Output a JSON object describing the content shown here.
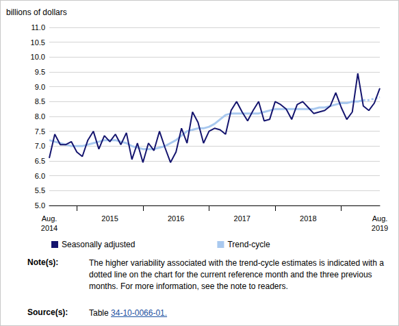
{
  "chart_data": {
    "type": "line",
    "y_label": "billions of dollars",
    "categories": [
      "Aug.\n2014",
      null,
      null,
      null,
      null,
      null,
      null,
      null,
      null,
      null,
      null,
      "2015",
      null,
      null,
      null,
      null,
      null,
      null,
      null,
      null,
      null,
      null,
      null,
      "2016",
      null,
      null,
      null,
      null,
      null,
      null,
      null,
      null,
      null,
      null,
      null,
      "2017",
      null,
      null,
      null,
      null,
      null,
      null,
      null,
      null,
      null,
      null,
      null,
      "2018",
      null,
      null,
      null,
      null,
      null,
      null,
      null,
      null,
      null,
      null,
      null,
      null,
      "Aug.\n2019"
    ],
    "series": [
      {
        "name": "Seasonally adjusted",
        "color": "#14146e",
        "values": [
          6.6,
          7.4,
          7.05,
          7.05,
          7.15,
          6.8,
          6.65,
          7.2,
          7.5,
          6.9,
          7.35,
          7.15,
          7.4,
          7.05,
          7.45,
          6.55,
          7.1,
          6.45,
          7.1,
          6.85,
          7.5,
          6.95,
          6.45,
          6.8,
          7.6,
          7.1,
          8.15,
          7.8,
          7.1,
          7.5,
          7.6,
          7.55,
          7.4,
          8.2,
          8.5,
          8.15,
          7.85,
          8.2,
          8.5,
          7.85,
          7.9,
          8.5,
          8.4,
          8.25,
          7.9,
          8.4,
          8.5,
          8.3,
          8.1,
          8.15,
          8.2,
          8.35,
          8.8,
          8.3,
          7.9,
          8.15,
          9.45,
          8.35,
          8.2,
          8.45,
          8.95
        ]
      },
      {
        "name": "Trend-cycle",
        "color": "#a9c9ef",
        "line_style": "solid",
        "values": [
          7.2,
          7.15,
          7.1,
          7.05,
          7.0,
          7.0,
          7.0,
          7.05,
          7.1,
          7.15,
          7.2,
          7.2,
          7.2,
          7.15,
          7.1,
          7.0,
          6.95,
          6.9,
          6.9,
          6.9,
          6.95,
          7.0,
          7.1,
          7.2,
          7.35,
          7.5,
          7.55,
          7.6,
          7.6,
          7.65,
          7.75,
          7.9,
          8.05,
          8.1,
          8.1,
          8.1,
          8.1,
          8.1,
          8.1,
          8.15,
          8.2,
          8.25,
          8.25,
          8.25,
          8.25,
          8.25,
          8.25,
          8.25,
          8.25,
          8.3,
          8.3,
          8.35,
          8.4,
          8.45,
          8.45,
          8.5,
          8.5,
          8.55,
          null,
          null,
          null
        ]
      },
      {
        "name": "Trend-cycle",
        "color": "#a9c9ef",
        "line_style": "dotted",
        "values": [
          null,
          null,
          null,
          null,
          null,
          null,
          null,
          null,
          null,
          null,
          null,
          null,
          null,
          null,
          null,
          null,
          null,
          null,
          null,
          null,
          null,
          null,
          null,
          null,
          null,
          null,
          null,
          null,
          null,
          null,
          null,
          null,
          null,
          null,
          null,
          null,
          null,
          null,
          null,
          null,
          null,
          null,
          null,
          null,
          null,
          null,
          null,
          null,
          null,
          null,
          null,
          null,
          null,
          null,
          null,
          null,
          null,
          8.55,
          8.55,
          8.6,
          8.65
        ]
      }
    ],
    "ylim": [
      5,
      11
    ],
    "yticks": [
      {
        "value": 5,
        "label": "5.0"
      },
      {
        "value": 5.5,
        "label": "5.5"
      },
      {
        "value": 6,
        "label": "6.0"
      },
      {
        "value": 6.5,
        "label": "6.5"
      },
      {
        "value": 7,
        "label": "7.0"
      },
      {
        "value": 7.5,
        "label": "7.5"
      },
      {
        "value": 8,
        "label": "8.0"
      },
      {
        "value": 8.5,
        "label": "8.5"
      },
      {
        "value": 9,
        "label": "9.0"
      },
      {
        "value": 9.5,
        "label": "9.5"
      },
      {
        "value": 10,
        "label": "10.0"
      },
      {
        "value": 10.5,
        "label": "10.5"
      },
      {
        "value": 11,
        "label": "11.0"
      }
    ],
    "grid": true,
    "legend": "bottom",
    "note_label": "Note(s):",
    "note": "The higher variability associated with the trend-cycle estimates is indicated with a dotted line on the chart for the current reference month and the three previous months. For more information, see the note to readers.",
    "source_label": "Source(s):",
    "source": "Table 34-10-0066-01."
  }
}
